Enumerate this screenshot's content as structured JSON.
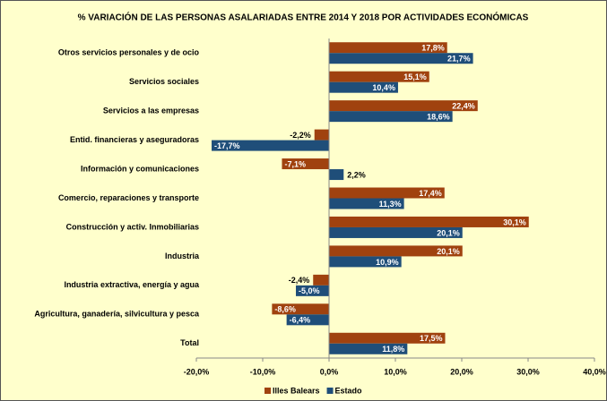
{
  "chart_data": {
    "type": "hbar",
    "title": "% VARIACIÓN DE LAS PERSONAS ASALARIADAS ENTRE 2014 Y 2018 POR ACTIVIDADES ECONÓMICAS",
    "categories": [
      "Otros servicios personales y de ocio",
      "Servicios sociales",
      "Servicios a las empresas",
      "Entid. financieras y aseguradoras",
      "Información y comunicaciones",
      "Comercio, reparaciones y transporte",
      "Construcción y activ. Inmobiliarias",
      "Industria",
      "Industria extractiva, energía y agua",
      "Agricultura, ganadería, silvicultura y pesca",
      "Total"
    ],
    "series": [
      {
        "name": "Illes Balears",
        "color": "#a0420f",
        "values": [
          17.8,
          15.1,
          22.4,
          -2.2,
          -7.1,
          17.4,
          30.1,
          20.1,
          -2.4,
          -8.6,
          17.5
        ],
        "value_labels": [
          "17,8%",
          "15,1%",
          "22,4%",
          "-2,2%",
          "-7,1%",
          "17,4%",
          "30,1%",
          "20,1%",
          "-2,4%",
          "-8,6%",
          "17,5%"
        ]
      },
      {
        "name": "Estado",
        "color": "#1f4e79",
        "values": [
          21.7,
          10.4,
          18.6,
          -17.7,
          2.2,
          11.3,
          20.1,
          10.9,
          -5.0,
          -6.4,
          11.8
        ],
        "value_labels": [
          "21,7%",
          "10,4%",
          "18,6%",
          "-17,7%",
          "2,2%",
          "11,3%",
          "20,1%",
          "10,9%",
          "-5,0%",
          "-6,4%",
          "11,8%"
        ]
      }
    ],
    "xlim": [
      -20,
      40
    ],
    "xticks": [
      {
        "value": -20,
        "label": "-20,0%"
      },
      {
        "value": -10,
        "label": "-10,0%"
      },
      {
        "value": 0,
        "label": "0,0%"
      },
      {
        "value": 10,
        "label": "10,0%"
      },
      {
        "value": 20,
        "label": "20,0%"
      },
      {
        "value": 30,
        "label": "30,0%"
      },
      {
        "value": 40,
        "label": "40,0%"
      }
    ],
    "grid": false,
    "legend": "bottom"
  }
}
